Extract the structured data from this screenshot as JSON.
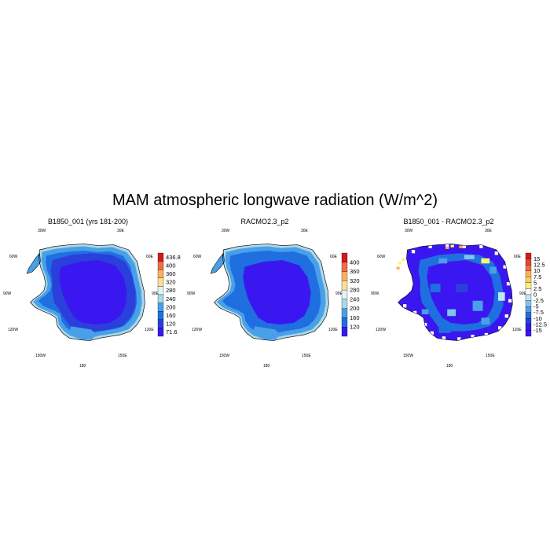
{
  "title": "MAM atmospheric longwave radiation (W/m^2)",
  "panels": [
    {
      "title": "B1850_001 (yrs 181-200)",
      "lon_labels": {
        "w30": "30W",
        "e30": "30E",
        "w60": "60W",
        "e60": "60E",
        "w90": "90W",
        "e90": "90E",
        "w120": "120W",
        "e120": "120E",
        "w150": "150W",
        "e150": "150E",
        "s180": "180"
      },
      "colorbar": {
        "labels": [
          "436.8",
          "400",
          "360",
          "320",
          "280",
          "240",
          "200",
          "160",
          "120",
          "71.6"
        ],
        "colors": [
          "#d7191c",
          "#f46d43",
          "#fdae61",
          "#fee090",
          "#e0f3f8",
          "#abd9e9",
          "#4aa0e8",
          "#1f6fe0",
          "#2b3fdc",
          "#3a17f0"
        ]
      }
    },
    {
      "title": "RACMO2.3_p2",
      "lon_labels": {
        "w30": "30W",
        "e30": "30E",
        "w60": "60W",
        "e60": "60E",
        "w90": "90W",
        "e90": "90E",
        "w120": "120W",
        "e120": "120E",
        "w150": "150W",
        "e150": "150E",
        "s180": "180"
      },
      "colorbar": {
        "labels": [
          "400",
          "360",
          "320",
          "280",
          "240",
          "200",
          "160",
          "120"
        ],
        "colors": [
          "#d7191c",
          "#f46d43",
          "#fdae61",
          "#fee090",
          "#e0f3f8",
          "#abd9e9",
          "#4aa0e8",
          "#1f6fe0",
          "#3a17f0"
        ]
      }
    },
    {
      "title": "B1850_001 - RACMO2.3_p2",
      "lon_labels": {
        "w30": "30W",
        "e30": "30E",
        "w60": "60W",
        "e60": "60E",
        "w90": "90W",
        "e90": "90E",
        "w120": "120W",
        "e120": "120E",
        "w150": "150W",
        "e150": "150E",
        "s180": "180"
      },
      "colorbar": {
        "labels": [
          "15",
          "12.5",
          "10",
          "7.5",
          "5",
          "2.5",
          "0",
          "-2.5",
          "-5",
          "-7.5",
          "-10",
          "-12.5",
          "-15"
        ],
        "colors": [
          "#d7191c",
          "#e8452f",
          "#f46d43",
          "#fdae61",
          "#fed063",
          "#fff27a",
          "#ffffff",
          "#bfe6f7",
          "#7fc6ee",
          "#4aa0e8",
          "#1f6fe0",
          "#2b3fdc",
          "#3a17f0",
          "#3a17f0"
        ]
      }
    }
  ],
  "map_colors": {
    "interior": "#3a17f0",
    "plateau": "#2b3fdc",
    "slope": "#1f6fe0",
    "coast": "#4aa0e8",
    "shelf": "#abd9e9"
  }
}
